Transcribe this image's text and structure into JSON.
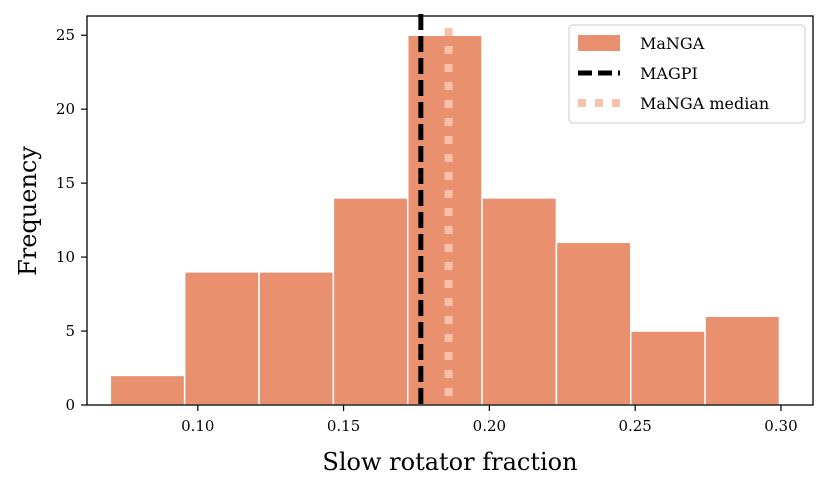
{
  "chart_data": {
    "type": "bar",
    "title": "",
    "xlabel": "Slow rotator fraction",
    "ylabel": "Frequency",
    "xlim": [
      0.062,
      0.311
    ],
    "ylim": [
      0,
      26.3
    ],
    "xticks": [
      0.1,
      0.15,
      0.2,
      0.25,
      0.3
    ],
    "xtick_labels": [
      "0.10",
      "0.15",
      "0.20",
      "0.25",
      "0.30"
    ],
    "yticks": [
      0,
      5,
      10,
      15,
      20,
      25
    ],
    "ytick_labels": [
      "0",
      "5",
      "10",
      "15",
      "20",
      "25"
    ],
    "bins": [
      {
        "x0": 0.07,
        "x1": 0.0955,
        "value": 2
      },
      {
        "x0": 0.0955,
        "x1": 0.121,
        "value": 9
      },
      {
        "x0": 0.121,
        "x1": 0.1465,
        "value": 9
      },
      {
        "x0": 0.1465,
        "x1": 0.172,
        "value": 14
      },
      {
        "x0": 0.172,
        "x1": 0.1975,
        "value": 25
      },
      {
        "x0": 0.1975,
        "x1": 0.223,
        "value": 14
      },
      {
        "x0": 0.223,
        "x1": 0.2485,
        "value": 11
      },
      {
        "x0": 0.2485,
        "x1": 0.274,
        "value": 5
      },
      {
        "x0": 0.274,
        "x1": 0.2995,
        "value": 6
      }
    ],
    "series": [
      {
        "name": "MaNGA",
        "kind": "histogram",
        "color": "#E9906F"
      },
      {
        "name": "MAGPI",
        "kind": "vline",
        "x": 0.1765,
        "color": "#000000",
        "style": "dashed"
      },
      {
        "name": "MaNGA median",
        "kind": "vline",
        "x": 0.186,
        "color": "#F8C2A8",
        "style": "dotted"
      }
    ],
    "legend_position": "top-right"
  }
}
